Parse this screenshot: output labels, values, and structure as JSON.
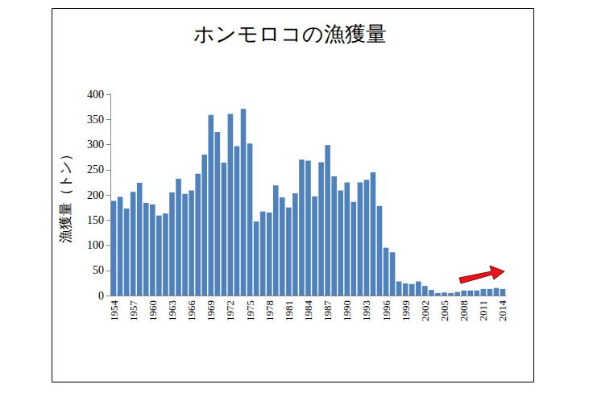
{
  "chart_data": {
    "type": "bar",
    "title": "ホンモロコの漁獲量",
    "y_label": "漁獲量（トン）",
    "categories": [
      "1954",
      null,
      null,
      "1957",
      null,
      null,
      "1960",
      null,
      null,
      "1963",
      null,
      null,
      "1966",
      null,
      null,
      "1969",
      null,
      null,
      "1972",
      null,
      null,
      "1975",
      null,
      null,
      "1978",
      null,
      null,
      "1981",
      null,
      null,
      "1984",
      null,
      null,
      "1987",
      null,
      null,
      "1990",
      null,
      null,
      "1993",
      null,
      null,
      "1996",
      null,
      null,
      "1999",
      null,
      null,
      "2002",
      null,
      null,
      "2005",
      null,
      null,
      "2008",
      null,
      null,
      "2011",
      null,
      null,
      "2014"
    ],
    "values": [
      188,
      196,
      173,
      206,
      224,
      184,
      181,
      159,
      163,
      205,
      232,
      202,
      209,
      242,
      280,
      359,
      325,
      264,
      361,
      297,
      371,
      302,
      147,
      167,
      165,
      219,
      195,
      175,
      203,
      270,
      268,
      197,
      265,
      299,
      237,
      209,
      225,
      186,
      225,
      230,
      245,
      178,
      95,
      86,
      28,
      24,
      23,
      28,
      19,
      11,
      5,
      6,
      5,
      7,
      10,
      10,
      10,
      13,
      13,
      15,
      13
    ],
    "color": "#4f81bd",
    "ylim": [
      0,
      400
    ],
    "yticks": [
      0,
      50,
      100,
      150,
      200,
      250,
      300,
      350,
      400
    ],
    "grid": false
  }
}
